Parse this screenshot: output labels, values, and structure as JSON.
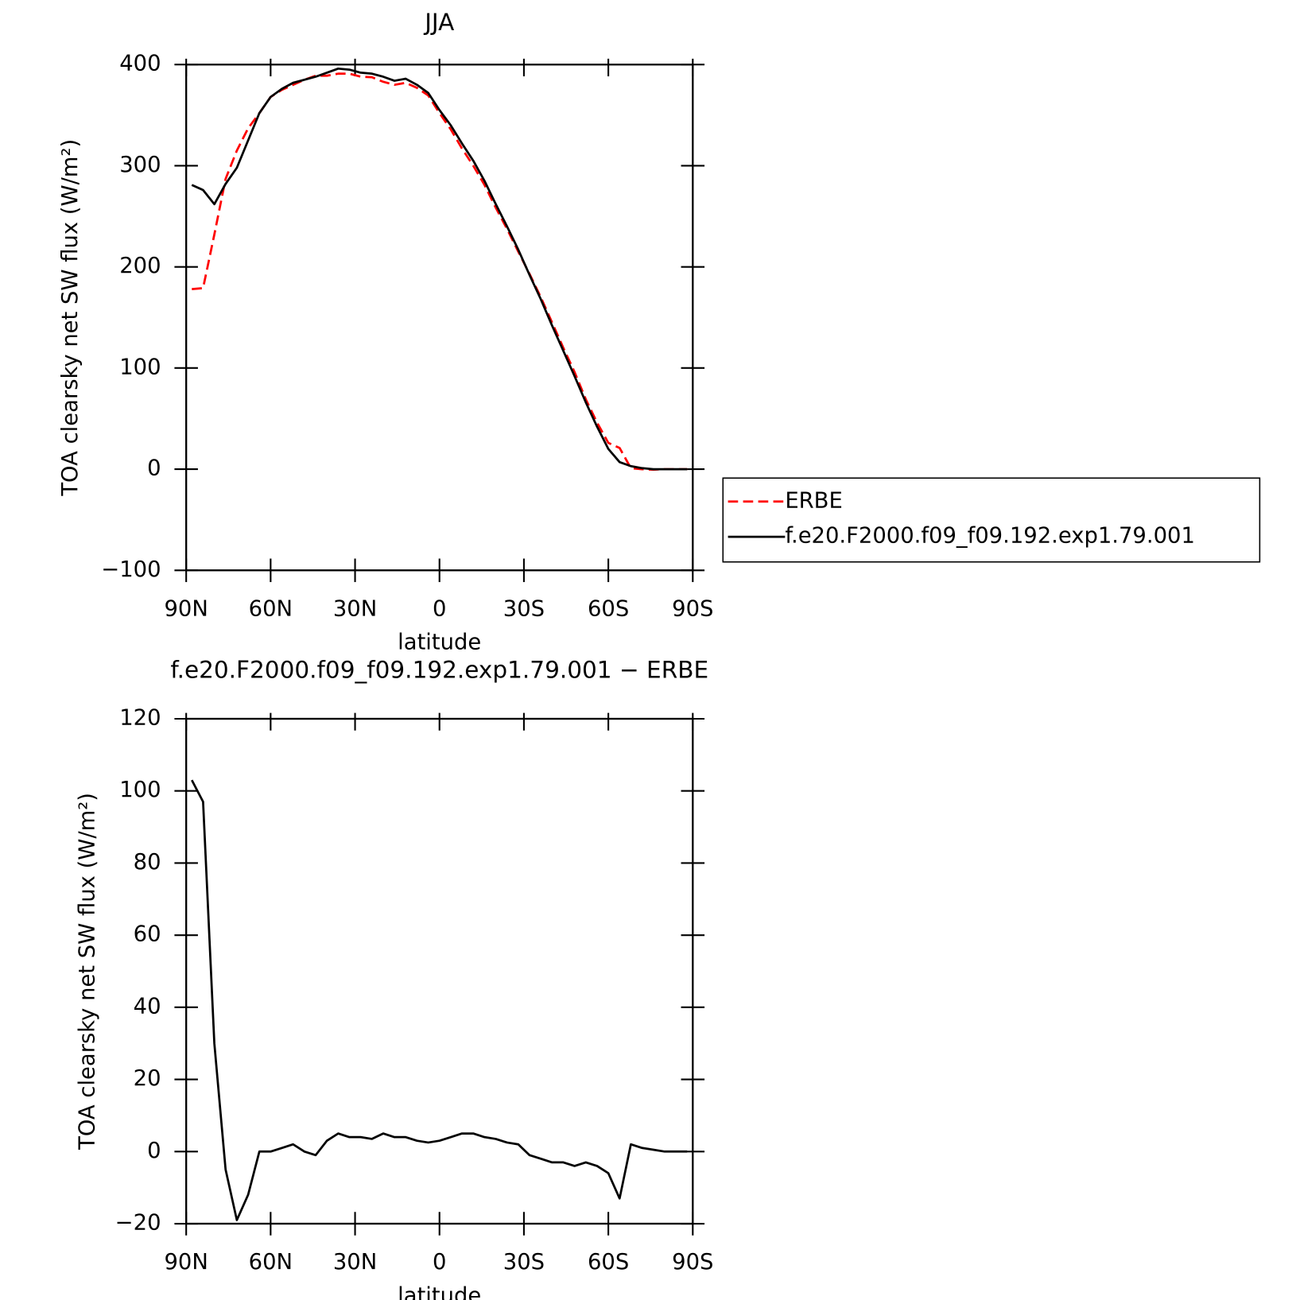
{
  "chart_data": [
    {
      "type": "line",
      "title": "JJA",
      "xlabel": "latitude",
      "ylabel": "TOA clearsky net SW flux (W/m²)",
      "x": [
        88,
        84,
        80,
        76,
        72,
        68,
        64,
        60,
        56,
        52,
        48,
        44,
        40,
        36,
        32,
        28,
        24,
        20,
        16,
        12,
        8,
        4,
        0,
        -4,
        -8,
        -12,
        -16,
        -20,
        -24,
        -28,
        -32,
        -36,
        -40,
        -44,
        -48,
        -52,
        -56,
        -60,
        -64,
        -68,
        -72,
        -76,
        -80,
        -84,
        -88
      ],
      "xlim": [
        90,
        -90
      ],
      "xticks": [
        {
          "value": 90,
          "label": "90N"
        },
        {
          "value": 60,
          "label": "60N"
        },
        {
          "value": 30,
          "label": "30N"
        },
        0,
        {
          "value": -30,
          "label": "30S"
        },
        {
          "value": -60,
          "label": "60S"
        },
        {
          "value": -90,
          "label": "90S"
        }
      ],
      "ylim": [
        -100,
        400
      ],
      "yticks": [
        {
          "value": -100,
          "label": "−100"
        },
        0,
        100,
        200,
        300,
        400
      ],
      "series": [
        {
          "name": "ERBE",
          "color": "#ff0000",
          "dashed": true,
          "values": [
            178,
            179,
            232,
            287,
            315,
            337,
            352,
            368,
            375,
            380,
            385,
            389,
            389,
            391,
            391,
            388,
            387.5,
            383,
            380,
            382,
            377,
            369.5,
            352,
            336,
            317,
            300,
            281,
            258.5,
            237.5,
            215,
            193,
            170,
            145,
            120,
            96,
            69,
            46,
            26,
            21,
            1,
            0,
            -0.5,
            0,
            0,
            0
          ]
        },
        {
          "name": "f.e20.F2000.f09_f09.192.exp1.79.001",
          "color": "#000000",
          "dashed": false,
          "values": [
            281,
            276,
            262,
            282,
            298,
            325,
            352,
            368,
            376,
            382,
            385,
            388,
            392,
            396,
            395,
            392,
            391,
            388,
            384,
            386,
            380,
            372,
            355,
            340,
            322,
            305,
            285,
            262,
            240,
            217,
            192,
            168,
            142,
            117,
            92,
            66,
            42,
            20,
            7,
            3,
            1,
            0,
            0,
            0,
            0
          ]
        }
      ]
    },
    {
      "type": "line",
      "title": "f.e20.F2000.f09_f09.192.exp1.79.001 − ERBE",
      "xlabel": "latitude",
      "ylabel": "TOA clearsky net SW flux (W/m²)",
      "x": [
        88,
        84,
        80,
        76,
        72,
        68,
        64,
        60,
        56,
        52,
        48,
        44,
        40,
        36,
        32,
        28,
        24,
        20,
        16,
        12,
        8,
        4,
        0,
        -4,
        -8,
        -12,
        -16,
        -20,
        -24,
        -28,
        -32,
        -36,
        -40,
        -44,
        -48,
        -52,
        -56,
        -60,
        -64,
        -68,
        -72,
        -76,
        -80,
        -84,
        -88
      ],
      "xlim": [
        90,
        -90
      ],
      "xticks": [
        {
          "value": 90,
          "label": "90N"
        },
        {
          "value": 60,
          "label": "60N"
        },
        {
          "value": 30,
          "label": "30N"
        },
        0,
        {
          "value": -30,
          "label": "30S"
        },
        {
          "value": -60,
          "label": "60S"
        },
        {
          "value": -90,
          "label": "90S"
        }
      ],
      "ylim": [
        -20,
        120
      ],
      "yticks": [
        {
          "value": -20,
          "label": "−20"
        },
        0,
        20,
        40,
        60,
        80,
        100,
        120
      ],
      "series": [
        {
          "color": "#000000",
          "dashed": false,
          "values": [
            103,
            97,
            30,
            -5,
            -19,
            -12,
            0,
            0,
            1,
            2,
            0,
            -1,
            3,
            5,
            4,
            4,
            3.5,
            5,
            4,
            4,
            3,
            2.5,
            3,
            4,
            5,
            5,
            4,
            3.5,
            2.5,
            2,
            -1,
            -2,
            -3,
            -3,
            -4,
            -3,
            -4,
            -6,
            -13,
            2,
            1,
            0.5,
            0,
            0,
            0
          ]
        }
      ]
    }
  ]
}
